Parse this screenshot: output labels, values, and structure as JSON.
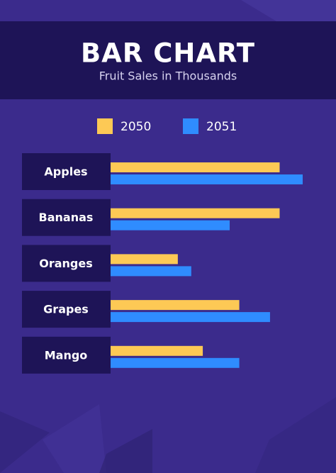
{
  "chart_data": {
    "type": "barh",
    "title": "BAR CHART",
    "subtitle": "Fruit Sales in Thousands",
    "categories": [
      "Apples",
      "Bananas",
      "Oranges",
      "Grapes",
      "Mango"
    ],
    "series": [
      {
        "name": "2050",
        "color": "#fdc955",
        "values": [
          88,
          88,
          35,
          67,
          48
        ]
      },
      {
        "name": "2051",
        "color": "#2f8cff",
        "values": [
          100,
          62,
          42,
          83,
          67
        ]
      }
    ]
  }
}
